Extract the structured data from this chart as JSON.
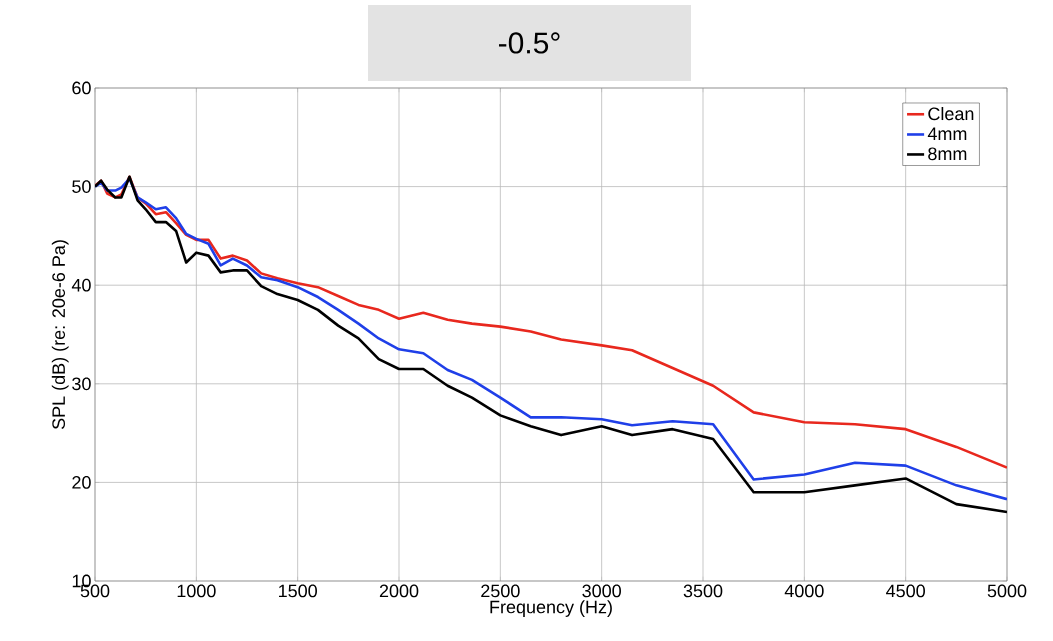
{
  "chart_data": {
    "type": "line",
    "title": "-0.5°",
    "xlabel": "Frequency (Hz)",
    "ylabel": "SPL (dB) (re: 20e-6 Pa)",
    "x": [
      500,
      530,
      560,
      600,
      630,
      670,
      710,
      750,
      800,
      850,
      900,
      950,
      1000,
      1060,
      1120,
      1180,
      1250,
      1320,
      1400,
      1500,
      1600,
      1700,
      1800,
      1900,
      2000,
      2120,
      2240,
      2360,
      2500,
      2650,
      2800,
      3000,
      3150,
      3350,
      3550,
      3750,
      4000,
      4250,
      4500,
      4750,
      5000
    ],
    "series": [
      {
        "name": "Clean",
        "color": "#e8281e",
        "values": [
          50.1,
          50.6,
          49.3,
          48.9,
          49.2,
          51.0,
          48.9,
          48.3,
          47.2,
          47.4,
          46.3,
          45.1,
          44.6,
          44.6,
          42.7,
          43.0,
          42.5,
          41.2,
          40.7,
          40.2,
          39.8,
          38.9,
          38.0,
          37.5,
          36.6,
          37.2,
          36.5,
          36.1,
          35.8,
          35.3,
          34.5,
          33.9,
          33.4,
          31.6,
          29.8,
          27.1,
          26.1,
          25.9,
          25.4,
          23.6,
          21.5
        ]
      },
      {
        "name": "4mm",
        "color": "#1f3fe8",
        "values": [
          50.0,
          50.4,
          49.6,
          49.6,
          49.9,
          50.8,
          48.9,
          48.4,
          47.7,
          47.9,
          46.8,
          45.2,
          44.7,
          44.2,
          42.0,
          42.7,
          42.0,
          40.8,
          40.5,
          39.8,
          38.8,
          37.5,
          36.1,
          34.6,
          33.5,
          33.1,
          31.4,
          30.4,
          28.6,
          26.6,
          26.6,
          26.4,
          25.8,
          26.2,
          25.9,
          20.3,
          20.8,
          22.0,
          21.7,
          19.7,
          18.3
        ]
      },
      {
        "name": "8mm",
        "color": "#000000",
        "values": [
          50.0,
          50.6,
          49.7,
          48.9,
          48.9,
          51.0,
          48.6,
          47.7,
          46.4,
          46.4,
          45.5,
          42.3,
          43.3,
          43.0,
          41.3,
          41.5,
          41.5,
          39.9,
          39.1,
          38.5,
          37.5,
          35.9,
          34.6,
          32.5,
          31.5,
          31.5,
          29.8,
          28.6,
          26.8,
          25.7,
          24.8,
          25.7,
          24.8,
          25.4,
          24.4,
          19.0,
          19.0,
          19.7,
          20.4,
          17.8,
          17.0
        ]
      }
    ],
    "xlim": [
      500,
      5000
    ],
    "ylim": [
      10,
      60
    ],
    "xticks": [
      500,
      1000,
      1500,
      2000,
      2500,
      3000,
      3500,
      4000,
      4500,
      5000
    ],
    "yticks": [
      10,
      20,
      30,
      40,
      50,
      60
    ],
    "grid": true,
    "legend": "top right",
    "line_style": "solid",
    "marker": "none"
  }
}
